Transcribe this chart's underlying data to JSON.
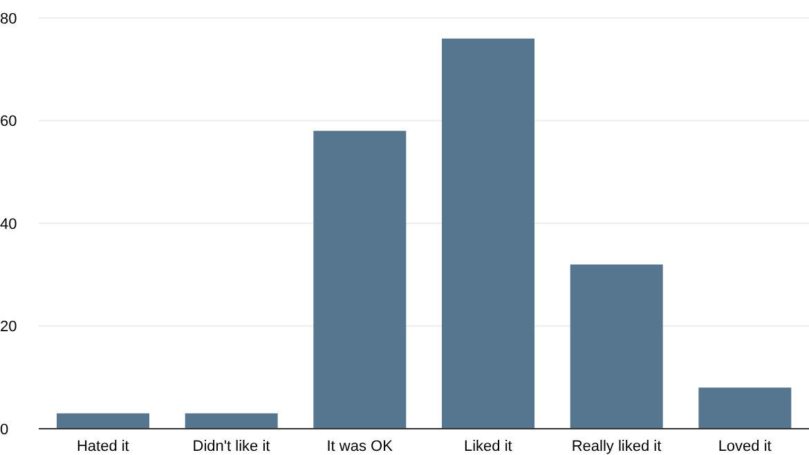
{
  "chart_data": {
    "type": "bar",
    "categories": [
      "Hated it",
      "Didn't like it",
      "It was OK",
      "Liked it",
      "Really liked it",
      "Loved it"
    ],
    "values": [
      3,
      3,
      58,
      76,
      32,
      8
    ],
    "color": "#56758f",
    "ylim": [
      0,
      80
    ],
    "yticks": [
      0,
      20,
      40,
      60,
      80
    ],
    "grid": "y"
  }
}
